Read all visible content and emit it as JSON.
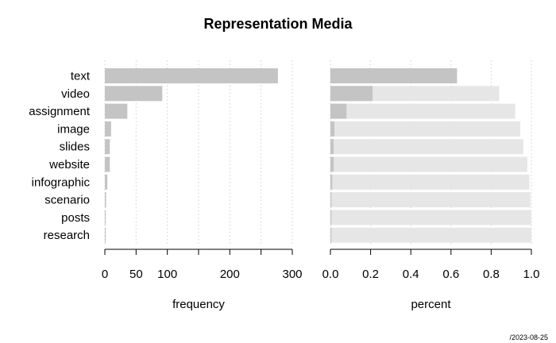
{
  "chart_data": {
    "type": "bar",
    "title": "Representation Media",
    "footer": "/2023-08-25",
    "categories": [
      "text",
      "video",
      "assignment",
      "image",
      "slides",
      "website",
      "infographic",
      "scenario",
      "posts",
      "research"
    ],
    "panels": [
      {
        "name": "frequency",
        "xlabel": "frequency",
        "xlim": [
          0,
          300
        ],
        "ticks": [
          0,
          50,
          100,
          200,
          300
        ],
        "gridlines": [
          0,
          50,
          100,
          150,
          200,
          250,
          300
        ],
        "values": [
          277,
          92,
          36,
          10,
          8,
          8,
          4,
          2,
          1,
          1
        ]
      },
      {
        "name": "percent",
        "xlabel": "percent",
        "xlim": [
          0,
          1
        ],
        "ticks": [
          "0.0",
          "0.2",
          "0.4",
          "0.6",
          "0.8",
          "1.0"
        ],
        "gridlines": [
          0,
          0.2,
          0.4,
          0.6,
          0.8,
          1.0
        ],
        "values": [
          0.63,
          0.21,
          0.08,
          0.02,
          0.016,
          0.016,
          0.009,
          0.005,
          0.003,
          0.003
        ],
        "cumulative": [
          0.63,
          0.84,
          0.92,
          0.945,
          0.96,
          0.98,
          0.99,
          0.995,
          0.998,
          1.0
        ]
      }
    ],
    "colors": {
      "bar": "#c4c4c4",
      "cumulative": "#e6e6e6",
      "grid": "#d0d0d0",
      "axis": "#000000"
    }
  }
}
